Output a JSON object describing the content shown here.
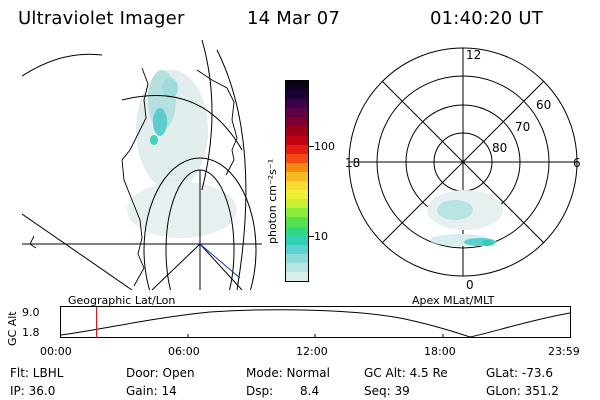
{
  "header": {
    "instrument": "Ultraviolet Imager",
    "date": "14 Mar 07",
    "time": "01:40:20 UT"
  },
  "colorbar": {
    "label": "photon cm⁻²s⁻¹",
    "ticks": [
      "100",
      "10"
    ],
    "colors": [
      "#0d0018",
      "#1a0036",
      "#3b0048",
      "#600045",
      "#7a0030",
      "#9c0018",
      "#c40010",
      "#e51a10",
      "#f04a10",
      "#f58a10",
      "#f8b820",
      "#f8dc30",
      "#f0f036",
      "#c8f030",
      "#8cec3a",
      "#55e050",
      "#30d884",
      "#30d0b4",
      "#5cd0d0",
      "#8cdada",
      "#b8e4e4",
      "#d8eeee"
    ]
  },
  "left_panel": {
    "caption": "Geographic Lat/Lon"
  },
  "polar": {
    "mlt_labels": {
      "top": "12",
      "left": "18",
      "right": "6",
      "bottom": "0"
    },
    "lat_labels": [
      "60",
      "70",
      "80"
    ],
    "caption": "Apex MLat/MLT"
  },
  "altitude_plot": {
    "ylabel": "GC Alt",
    "yticks": [
      "9.0",
      "1.8"
    ],
    "xticks": [
      "00:00",
      "06:00",
      "12:00",
      "18:00",
      "23:59"
    ],
    "current_time_fraction": 0.07
  },
  "status": {
    "flt": "Flt: LBHL",
    "door": "Door: Open",
    "mode": "Mode: Normal",
    "gc_alt": "GC Alt: 4.5 Re",
    "glat": "GLat: -73.6",
    "ip": "IP: 36.0",
    "gain": "Gain: 14",
    "dsp_label": "Dsp:",
    "dsp_value": "8.4",
    "seq": "Seq: 39",
    "glon": "GLon: 351.2"
  }
}
